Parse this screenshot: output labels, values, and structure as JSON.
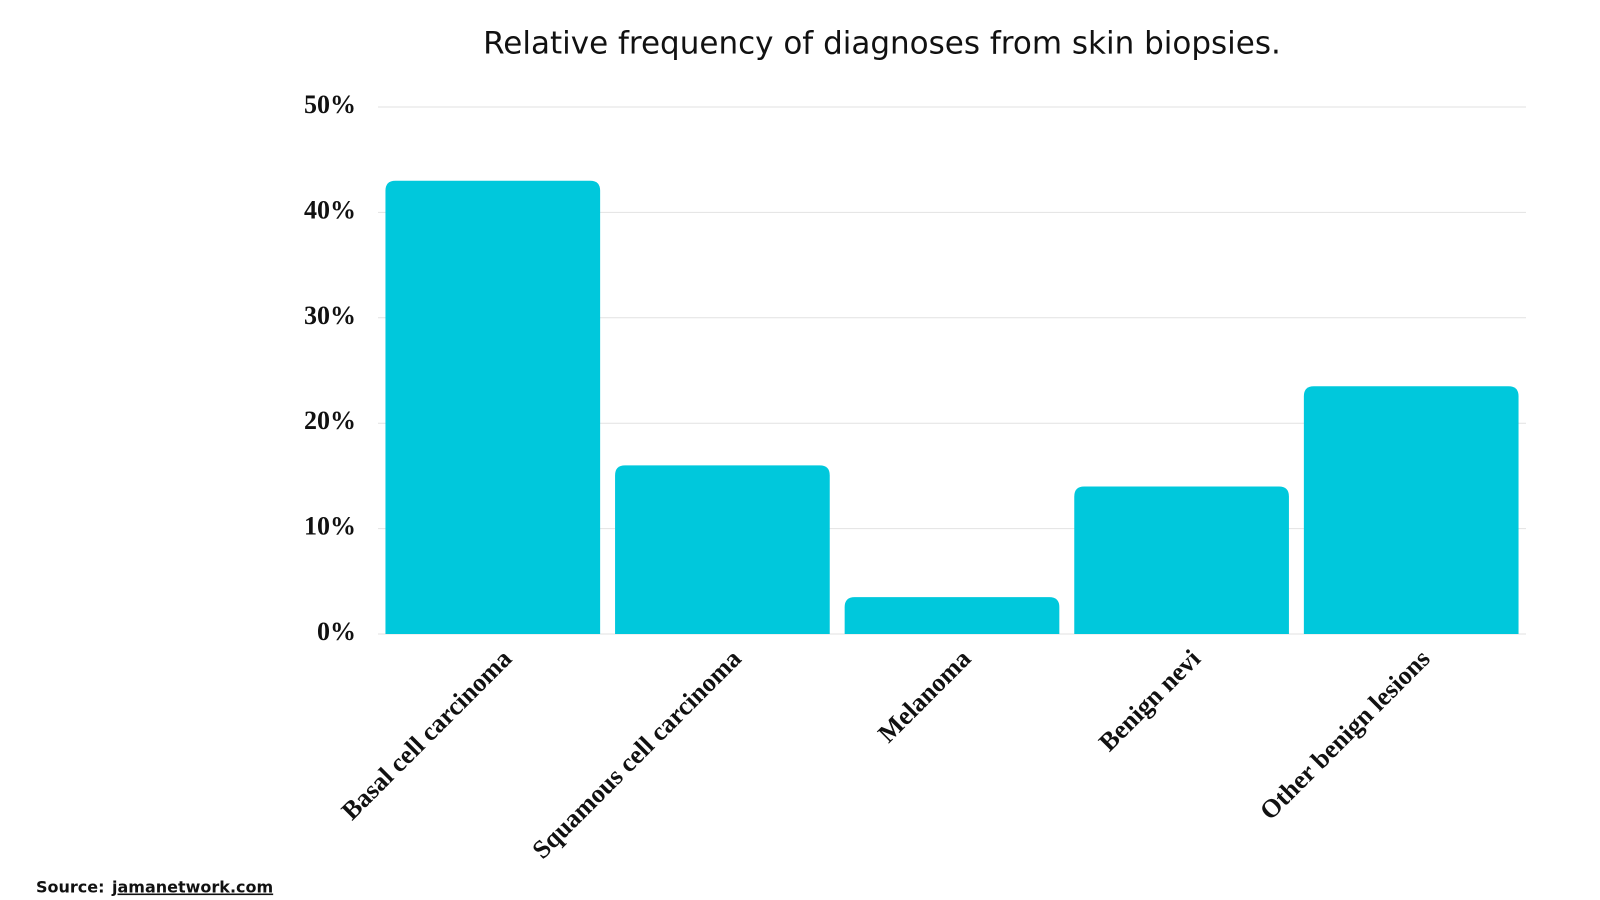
{
  "chart_data": {
    "type": "bar",
    "title": "Relative frequency of diagnoses from skin biopsies.",
    "categories": [
      "Basal cell carcinoma",
      "Squamous cell carcinoma",
      "Melanoma",
      "Benign nevi",
      "Other benign lesions"
    ],
    "values": [
      43,
      16,
      3.5,
      14,
      23.5
    ],
    "color": "#00c8dc",
    "ylim": [
      0,
      50
    ],
    "yticks": [
      {
        "value": 0,
        "label": "0%"
      },
      {
        "value": 10,
        "label": "10%"
      },
      {
        "value": 20,
        "label": "20%"
      },
      {
        "value": 30,
        "label": "30%"
      },
      {
        "value": 40,
        "label": "40%"
      },
      {
        "value": 50,
        "label": "50%"
      }
    ],
    "grid": true,
    "source_label": "Source:",
    "source": "jamanetwork.com"
  }
}
